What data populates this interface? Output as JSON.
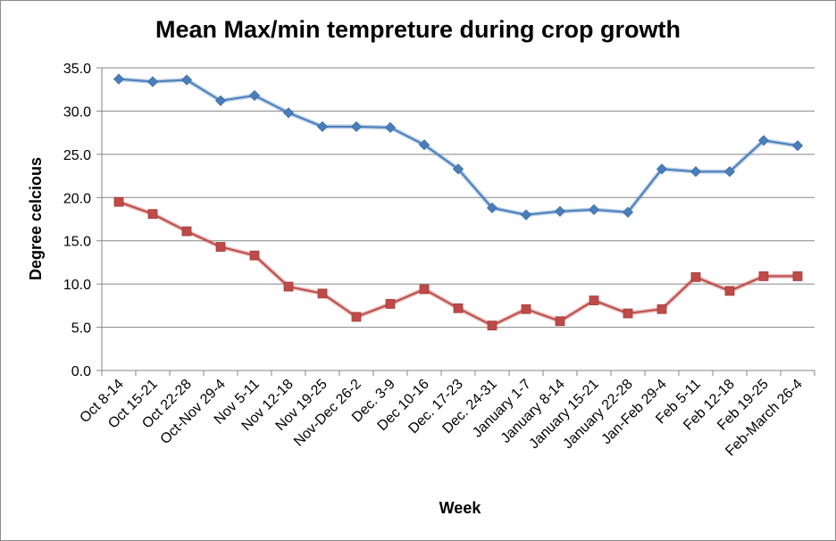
{
  "chart_data": {
    "type": "line",
    "title": "Mean Max/min tempreture during crop growth",
    "xlabel": "Week",
    "ylabel": "Degree celcious",
    "ylim": [
      0,
      35
    ],
    "yticks": [
      "0.0",
      "5.0",
      "10.0",
      "15.0",
      "20.0",
      "25.0",
      "30.0",
      "35.0"
    ],
    "grid": true,
    "legend": "none",
    "categories": [
      "Oct 8-14",
      "Oct 15-21",
      "Oct 22-28",
      "Oct-Nov 29-4",
      "Nov 5-11",
      "Nov 12-18",
      "Nov 19-25",
      "Nov-Dec 26-2",
      "Dec. 3-9",
      "Dec 10-16",
      "Dec. 17-23",
      "Dec. 24-31",
      "January 1-7",
      "January 8-14",
      "January 15-21",
      "January 22-28",
      "Jan-Feb 29-4",
      "Feb 5-11",
      "Feb 12-18",
      "Feb 19-25",
      "Feb-March 26-4"
    ],
    "series": [
      {
        "color": "#4a7ebb",
        "marker": "diamond",
        "values": [
          33.7,
          33.4,
          33.6,
          31.2,
          31.8,
          29.8,
          28.2,
          28.2,
          28.1,
          26.1,
          23.3,
          18.8,
          18.0,
          18.4,
          18.6,
          18.3,
          23.3,
          23.0,
          23.0,
          26.6,
          26.0
        ]
      },
      {
        "color": "#be4b48",
        "marker": "square",
        "values": [
          19.5,
          18.1,
          16.1,
          14.3,
          13.3,
          9.7,
          8.9,
          6.2,
          7.7,
          9.4,
          7.2,
          5.2,
          7.1,
          5.7,
          8.1,
          6.6,
          7.1,
          10.8,
          9.2,
          10.9,
          10.9
        ]
      }
    ]
  }
}
